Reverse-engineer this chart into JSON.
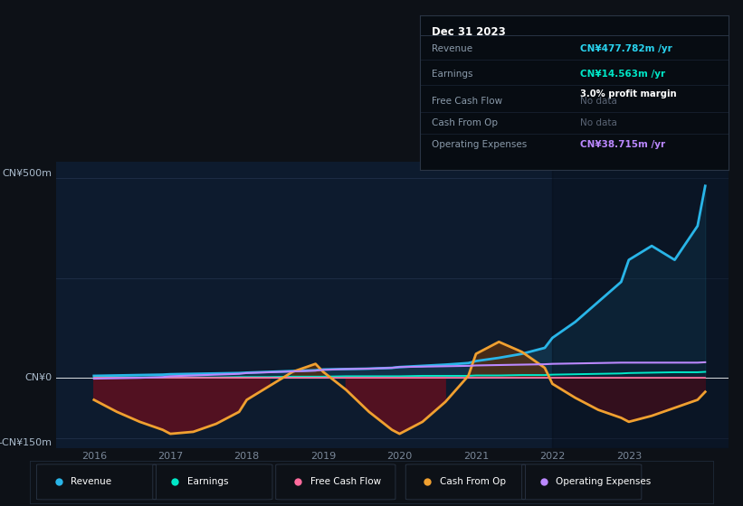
{
  "bg_color": "#0d1117",
  "plot_bg_color": "#0d1b2e",
  "grid_color": "#263550",
  "title_box": {
    "date": "Dec 31 2023",
    "rows": [
      {
        "label": "Revenue",
        "value": "CN¥477.782m",
        "value_color": "#29d4f0",
        "unit": " /yr",
        "note": null
      },
      {
        "label": "Earnings",
        "value": "CN¥14.563m",
        "value_color": "#00e8c8",
        "unit": " /yr",
        "note": "3.0% profit margin"
      },
      {
        "label": "Free Cash Flow",
        "value": "No data",
        "value_color": "#5a6474",
        "unit": "",
        "note": null
      },
      {
        "label": "Cash From Op",
        "value": "No data",
        "value_color": "#5a6474",
        "unit": "",
        "note": null
      },
      {
        "label": "Operating Expenses",
        "value": "CN¥38.715m",
        "value_color": "#bb88ff",
        "unit": " /yr",
        "note": null
      }
    ]
  },
  "ylabel_top": "CN¥500m",
  "ylabel_zero": "CN¥0",
  "ylabel_neg": "-CN¥150m",
  "xticklabels": [
    "2016",
    "2017",
    "2018",
    "2019",
    "2020",
    "2021",
    "2022",
    "2023"
  ],
  "ylim": [
    -175,
    540
  ],
  "xlim": [
    2015.5,
    2024.3
  ],
  "years": [
    2016.0,
    2016.3,
    2016.6,
    2016.9,
    2017.0,
    2017.3,
    2017.6,
    2017.9,
    2018.0,
    2018.3,
    2018.6,
    2018.9,
    2019.0,
    2019.3,
    2019.6,
    2019.9,
    2020.0,
    2020.3,
    2020.6,
    2020.9,
    2021.0,
    2021.3,
    2021.6,
    2021.9,
    2022.0,
    2022.3,
    2022.6,
    2022.9,
    2023.0,
    2023.3,
    2023.6,
    2023.9,
    2024.0
  ],
  "revenue": [
    5,
    6,
    7,
    8,
    9,
    10,
    11,
    12,
    13,
    15,
    17,
    19,
    21,
    22,
    23,
    25,
    27,
    30,
    33,
    37,
    42,
    50,
    60,
    75,
    100,
    140,
    190,
    240,
    295,
    330,
    295,
    380,
    480
  ],
  "earnings": [
    1,
    1,
    1,
    1,
    1,
    1,
    1,
    2,
    2,
    2,
    3,
    3,
    3,
    4,
    4,
    4,
    4,
    5,
    5,
    5,
    6,
    6,
    7,
    7,
    8,
    9,
    10,
    11,
    12,
    13,
    14,
    14,
    15
  ],
  "free_cash_flow": [
    0,
    0,
    0,
    0,
    0,
    0,
    0,
    0,
    0,
    0,
    0,
    0,
    0,
    0,
    0,
    0,
    0,
    0,
    0,
    0,
    0,
    0,
    0,
    0,
    0,
    0,
    0,
    0,
    0,
    0,
    0,
    0,
    0
  ],
  "cash_from_op": [
    -55,
    -85,
    -110,
    -130,
    -140,
    -135,
    -115,
    -85,
    -55,
    -20,
    15,
    35,
    15,
    -30,
    -85,
    -130,
    -140,
    -110,
    -60,
    5,
    60,
    90,
    65,
    25,
    -15,
    -50,
    -80,
    -100,
    -110,
    -95,
    -75,
    -55,
    -35
  ],
  "operating_expenses": [
    -2,
    -1,
    0,
    2,
    4,
    6,
    8,
    10,
    12,
    14,
    16,
    18,
    20,
    22,
    23,
    25,
    27,
    28,
    29,
    30,
    31,
    32,
    33,
    34,
    35,
    36,
    37,
    38,
    38,
    38,
    38,
    38,
    39
  ],
  "revenue_color": "#29b5e8",
  "earnings_color": "#00e8c8",
  "free_cash_flow_color": "#ff6b9d",
  "cash_from_op_color": "#f0a030",
  "operating_expenses_color": "#bb88ff",
  "revenue_fill_color": "#1a3a5c",
  "neg_fill_color": "#5a1020",
  "pos_fill_color": "#5a3010",
  "legend_items": [
    {
      "label": "Revenue",
      "color": "#29b5e8"
    },
    {
      "label": "Earnings",
      "color": "#00e8c8"
    },
    {
      "label": "Free Cash Flow",
      "color": "#ff6b9d"
    },
    {
      "label": "Cash From Op",
      "color": "#f0a030"
    },
    {
      "label": "Operating Expenses",
      "color": "#bb88ff"
    }
  ]
}
